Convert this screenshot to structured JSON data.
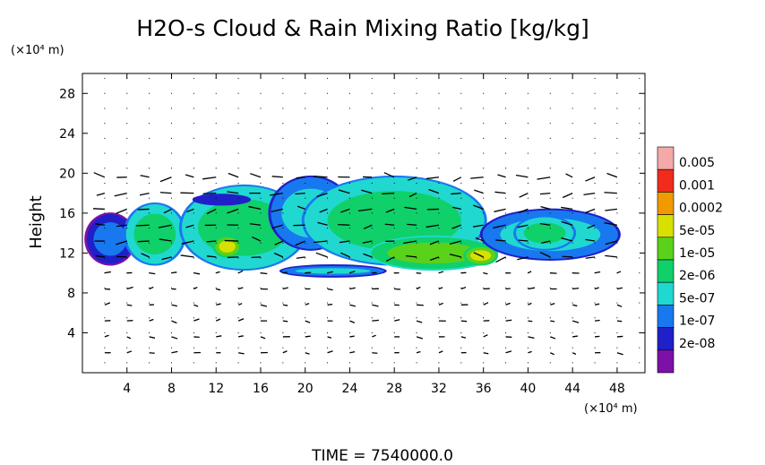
{
  "chart_data": {
    "type": "heatmap",
    "title": "H2O-s Cloud & Rain Mixing Ratio [kg/kg]",
    "ylabel": "Height",
    "y_unit_label": "(×10⁴ m)",
    "x_unit_label": "(×10⁴ m)",
    "xlim": [
      0,
      50.5
    ],
    "ylim": [
      0,
      30
    ],
    "x_ticks": [
      4,
      8,
      12,
      16,
      20,
      24,
      28,
      32,
      36,
      40,
      44,
      48
    ],
    "y_ticks": [
      4,
      8,
      12,
      16,
      20,
      24,
      28
    ],
    "grid": true,
    "overlay": "wind vectors",
    "colorbar": {
      "placement": "right",
      "labels": [
        "0.005",
        "0.001",
        "0.0002",
        "5e-05",
        "1e-05",
        "2e-06",
        "5e-07",
        "1e-07",
        "2e-08"
      ],
      "colors": [
        "#f4a8a8",
        "#f02c1c",
        "#f09a00",
        "#d8e000",
        "#5ad21a",
        "#10d06a",
        "#20d8d0",
        "#1878f0",
        "#2020c8",
        "#7c10a8"
      ]
    },
    "regions": [
      {
        "x": [
          0.5,
          4.5
        ],
        "y": [
          11.0,
          15.8
        ],
        "level": 2
      },
      {
        "x": [
          4,
          9
        ],
        "y": [
          11.0,
          16.8
        ],
        "level": 4
      },
      {
        "x": [
          9,
          20
        ],
        "y": [
          10.5,
          18.6
        ],
        "level": 4
      },
      {
        "x": [
          12,
          14
        ],
        "y": [
          11.8,
          13.5
        ],
        "level": 6
      },
      {
        "x": [
          17,
          24
        ],
        "y": [
          12.5,
          19.5
        ],
        "level": 3
      },
      {
        "x": [
          20,
          36
        ],
        "y": [
          11.0,
          19.5
        ],
        "level": 4
      },
      {
        "x": [
          26,
          37
        ],
        "y": [
          10.5,
          13.5
        ],
        "level": 5
      },
      {
        "x": [
          34.5,
          37
        ],
        "y": [
          11.0,
          12.5
        ],
        "level": 6
      },
      {
        "x": [
          36,
          48
        ],
        "y": [
          11.5,
          16.2
        ],
        "level": 3
      },
      {
        "x": [
          39,
          44
        ],
        "y": [
          12.5,
          15.5
        ],
        "level": 4
      },
      {
        "x": [
          9,
          16
        ],
        "y": [
          16.5,
          18.2
        ],
        "level": 1
      },
      {
        "x": [
          18,
          27
        ],
        "y": [
          9.8,
          10.6
        ],
        "level": 3
      }
    ]
  },
  "footer": {
    "time": "TIME = 7540000.0"
  }
}
